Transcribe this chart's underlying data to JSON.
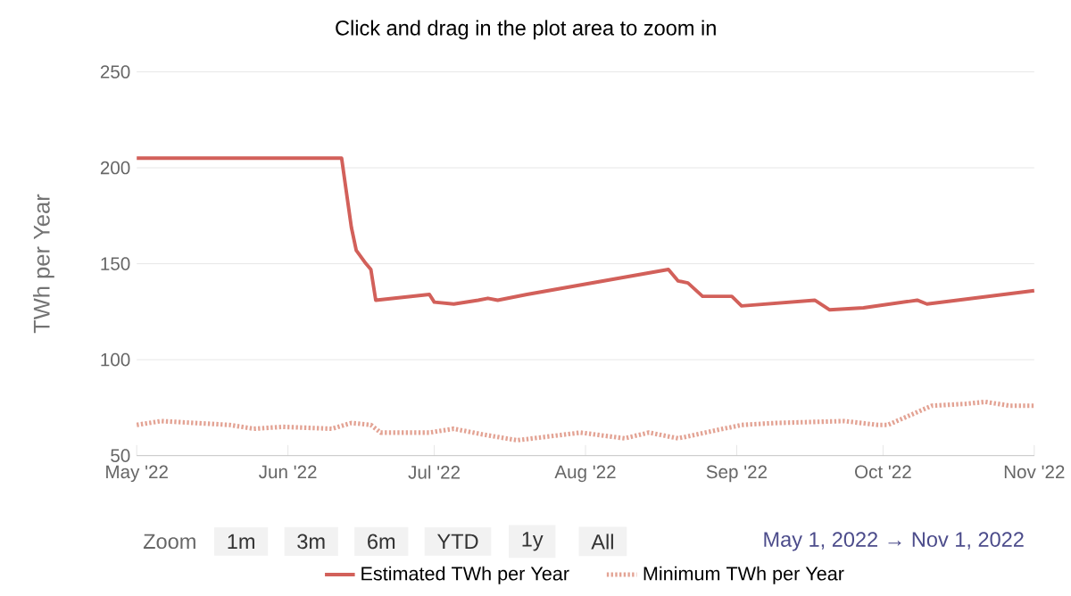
{
  "chart_data": {
    "type": "line",
    "title": "Click and drag in the plot area to zoom in",
    "ylabel": "TWh per Year",
    "xlim": [
      "2022-05-01",
      "2022-11-01"
    ],
    "xticks": [
      {
        "value": "2022-05-01",
        "label": "May '22"
      },
      {
        "value": "2022-06-01",
        "label": "Jun '22"
      },
      {
        "value": "2022-07-01",
        "label": "Jul '22"
      },
      {
        "value": "2022-08-01",
        "label": "Aug '22"
      },
      {
        "value": "2022-09-01",
        "label": "Sep '22"
      },
      {
        "value": "2022-10-01",
        "label": "Oct '22"
      },
      {
        "value": "2022-11-01",
        "label": "Nov '22"
      }
    ],
    "ylim": [
      50,
      250
    ],
    "yticks": [
      50,
      100,
      150,
      200,
      250
    ],
    "grid": "y",
    "legend": "bottom",
    "marker": "none",
    "annotations": [
      "Zoom",
      "1m",
      "3m",
      "6m",
      "YTD",
      "1y",
      "All",
      "May 1, 2022 → Nov 1, 2022"
    ],
    "series": [
      {
        "name": "Estimated TWh per Year",
        "color": "#d2605a",
        "line_style": "solid",
        "x": [
          "2022-05-01",
          "2022-06-12",
          "2022-06-13",
          "2022-06-14",
          "2022-06-15",
          "2022-06-17",
          "2022-06-18",
          "2022-06-19",
          "2022-06-30",
          "2022-07-01",
          "2022-07-05",
          "2022-07-10",
          "2022-07-12",
          "2022-07-14",
          "2022-07-20",
          "2022-08-18",
          "2022-08-20",
          "2022-08-22",
          "2022-08-25",
          "2022-08-31",
          "2022-09-02",
          "2022-09-17",
          "2022-09-20",
          "2022-09-27",
          "2022-10-08",
          "2022-10-10",
          "2022-11-01"
        ],
        "values": [
          205,
          205,
          187,
          169,
          157,
          150,
          147,
          131,
          134,
          130,
          129,
          131,
          132,
          131,
          134,
          147,
          141,
          140,
          133,
          133,
          128,
          131,
          126,
          127,
          131,
          129,
          136
        ]
      },
      {
        "name": "Minimum TWh per Year",
        "color": "#e3a394",
        "line_style": "dotted",
        "x": [
          "2022-05-01",
          "2022-05-06",
          "2022-05-20",
          "2022-05-25",
          "2022-05-31",
          "2022-06-10",
          "2022-06-14",
          "2022-06-18",
          "2022-06-20",
          "2022-06-30",
          "2022-07-05",
          "2022-07-11",
          "2022-07-18",
          "2022-07-31",
          "2022-08-09",
          "2022-08-14",
          "2022-08-20",
          "2022-09-02",
          "2022-09-09",
          "2022-09-23",
          "2022-09-30",
          "2022-10-02",
          "2022-10-11",
          "2022-10-18",
          "2022-10-22",
          "2022-10-27",
          "2022-11-01"
        ],
        "values": [
          66,
          68,
          66,
          64,
          65,
          64,
          67,
          66,
          62,
          62,
          64,
          61,
          58,
          62,
          59,
          62,
          59,
          66,
          67,
          68,
          66,
          66,
          76,
          77,
          78,
          76,
          76
        ]
      }
    ]
  }
}
